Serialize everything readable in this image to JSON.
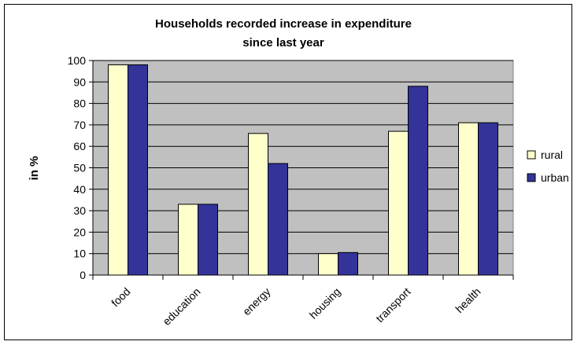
{
  "chart_data": {
    "type": "bar",
    "title_lines": [
      "Households recorded increase in expenditure",
      "since last year"
    ],
    "xlabel": "",
    "ylabel": "in %",
    "categories": [
      "food",
      "education",
      "energy",
      "housing",
      "transport",
      "health"
    ],
    "series": [
      {
        "name": "rural",
        "color": "#FFFFCC",
        "values": [
          98,
          33,
          66,
          10,
          67,
          71
        ]
      },
      {
        "name": "urban",
        "color": "#333399",
        "values": [
          98,
          33,
          52,
          10.5,
          88,
          71
        ]
      }
    ],
    "ylim": [
      0,
      100
    ],
    "yticks": [
      0,
      10,
      20,
      30,
      40,
      50,
      60,
      70,
      80,
      90,
      100
    ],
    "grid": true,
    "plot_background": "#C0C0C0",
    "legend_position": "right"
  }
}
